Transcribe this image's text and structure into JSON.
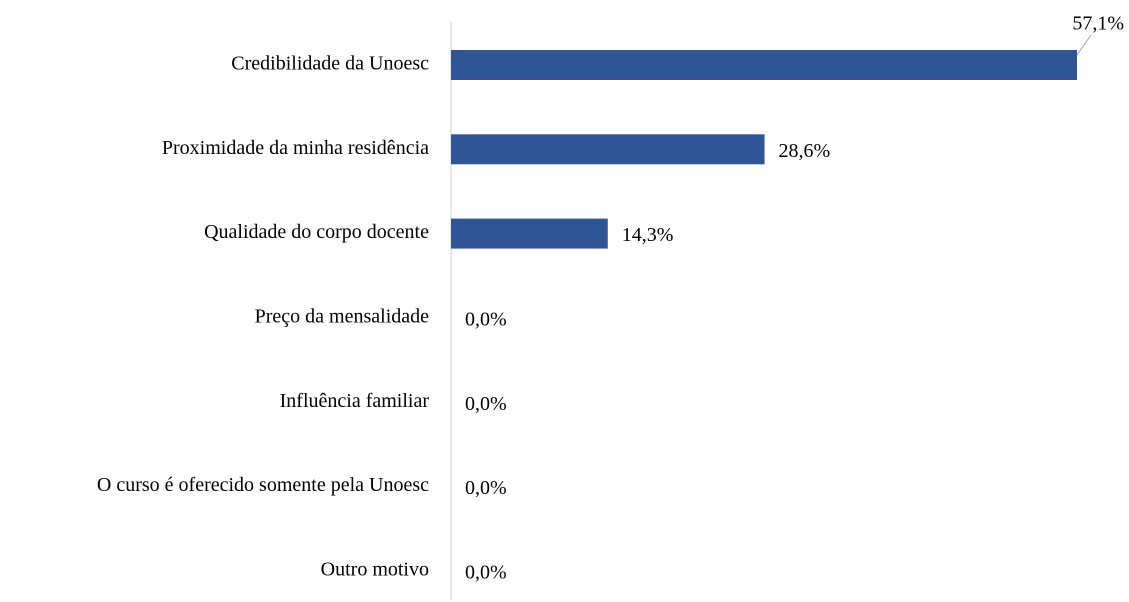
{
  "chart_data": {
    "type": "hbar",
    "categories": [
      "Credibilidade da Unoesc",
      "Proximidade da minha residência",
      "Qualidade do corpo docente",
      "Preço da mensalidade",
      "Influência familiar",
      "O curso é oferecido somente pela Unoesc",
      "Outro motivo"
    ],
    "values": [
      57.1,
      28.6,
      14.3,
      0,
      0,
      0,
      0
    ],
    "value_labels": [
      "57,1%",
      "28,6%",
      "14,3%",
      "0,0%",
      "0,0%",
      "0,0%",
      "0,0%"
    ],
    "color": "#2f5597"
  }
}
